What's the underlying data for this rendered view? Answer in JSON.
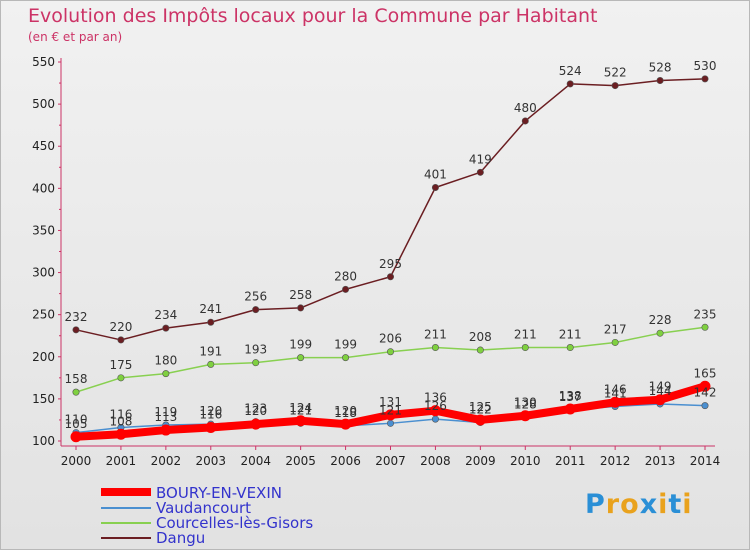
{
  "title": "Evolution des Impôts locaux pour la Commune par Habitant",
  "subtitle": "(en € et par an)",
  "logo": {
    "letters": [
      "P",
      "r",
      "o",
      "x",
      "i",
      "t",
      "i"
    ],
    "colors": [
      "#2a8fd6",
      "#e9a21d",
      "#e9a21d",
      "#2a8fd6",
      "#e9a21d",
      "#2a8fd6",
      "#e9a21d"
    ]
  },
  "chart_data": {
    "type": "line",
    "title": "Evolution des Impôts locaux pour la Commune par Habitant",
    "subtitle": "(en € et par an)",
    "x": [
      2000,
      2001,
      2002,
      2003,
      2004,
      2005,
      2006,
      2007,
      2008,
      2009,
      2010,
      2011,
      2012,
      2013,
      2014
    ],
    "ylim": [
      100,
      550
    ],
    "yticks": [
      100,
      150,
      200,
      250,
      300,
      350,
      400,
      450,
      500,
      550
    ],
    "grid": false,
    "legend_position": "bottom-left",
    "series": [
      {
        "name": "BOURY-EN-VEXIN",
        "color": "#ff0000",
        "values": [
          105,
          108,
          113,
          116,
          120,
          124,
          120,
          131,
          136,
          125,
          130,
          138,
          146,
          149,
          165
        ]
      },
      {
        "name": "Vaudancourt",
        "color": "#4a8fd0",
        "values": [
          110,
          116,
          119,
          120,
          123,
          121,
          118,
          121,
          126,
          122,
          128,
          137,
          141,
          144,
          142
        ]
      },
      {
        "name": "Courcelles-lès-Gisors",
        "color": "#88d050",
        "values": [
          158,
          175,
          180,
          191,
          193,
          199,
          199,
          206,
          211,
          208,
          211,
          211,
          217,
          228,
          235
        ]
      },
      {
        "name": "Dangu",
        "color": "#6b1e22",
        "values": [
          232,
          220,
          234,
          241,
          256,
          258,
          280,
          295,
          401,
          419,
          480,
          524,
          522,
          528,
          530
        ]
      }
    ],
    "labels": [
      {
        "series": "Dangu",
        "values": [
          232,
          220,
          234,
          241,
          256,
          258,
          280,
          295,
          401,
          419,
          480,
          524,
          522,
          528,
          530
        ]
      },
      {
        "series": "Courcelles-lès-Gisors",
        "values": [
          158,
          175,
          180,
          191,
          193,
          199,
          199,
          206,
          211,
          208,
          211,
          211,
          217,
          228,
          235
        ]
      },
      {
        "series": "Vaudancourt",
        "values": [
          110,
          116,
          119,
          120,
          123,
          121,
          118,
          121,
          126,
          122,
          128,
          137,
          141,
          144,
          142
        ]
      },
      {
        "series": "BOURY-EN-VEXIN",
        "values": [
          105,
          108,
          113,
          116,
          120,
          124,
          120,
          131,
          136,
          125,
          130,
          138,
          146,
          149,
          165
        ]
      }
    ]
  }
}
